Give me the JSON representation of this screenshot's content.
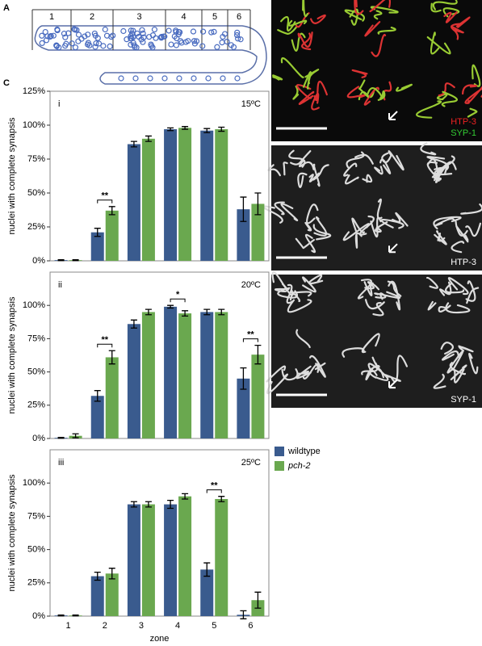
{
  "figure": {
    "panel_labels": [
      "A",
      "B",
      "C"
    ],
    "gonad_zones": [
      "1",
      "2",
      "3",
      "4",
      "5",
      "6"
    ],
    "micrographs": [
      [
        "HTP-3",
        "SYP-1"
      ],
      [
        "HTP-3"
      ],
      [
        "SYP-1"
      ]
    ]
  },
  "chart_data": [
    {
      "type": "bar",
      "panel": "i",
      "temperature": "15ºC",
      "ylabel": "nuclei with complete synapsis",
      "ylim": [
        0,
        125
      ],
      "yticks": [
        {
          "value": 0,
          "label": "0%"
        },
        {
          "value": 25,
          "label": "25%"
        },
        {
          "value": 50,
          "label": "50%"
        },
        {
          "value": 75,
          "label": "75%"
        },
        {
          "value": 100,
          "label": "100%"
        },
        {
          "value": 125,
          "label": "125%"
        }
      ],
      "series": [
        {
          "color": "#3a5b8e",
          "values": [
            0.5,
            21,
            86,
            97,
            96,
            38
          ],
          "errors": [
            0.3,
            3,
            2,
            1,
            1.5,
            9
          ]
        },
        {
          "color": "#6aa84f",
          "values": [
            0.5,
            37,
            90,
            98,
            97,
            42
          ],
          "errors": [
            0.3,
            3,
            2,
            1,
            1.5,
            8
          ]
        }
      ],
      "annotations": [
        {
          "text": "**",
          "category": "2"
        }
      ]
    },
    {
      "type": "bar",
      "panel": "ii",
      "temperature": "20ºC",
      "ylabel": "nuclei with complete synapsis",
      "ylim": [
        0,
        125
      ],
      "yticks": [
        {
          "value": 0,
          "label": "0%"
        },
        {
          "value": 25,
          "label": "25%"
        },
        {
          "value": 50,
          "label": "50%"
        },
        {
          "value": 75,
          "label": "75%"
        },
        {
          "value": 100,
          "label": "100%"
        }
      ],
      "series": [
        {
          "color": "#3a5b8e",
          "values": [
            0.5,
            32,
            86,
            99,
            95,
            45
          ],
          "errors": [
            0.3,
            4,
            3,
            1,
            2,
            8
          ]
        },
        {
          "color": "#6aa84f",
          "values": [
            2,
            61,
            95,
            94,
            95,
            63
          ],
          "errors": [
            1.5,
            5,
            2,
            2,
            2,
            7
          ]
        }
      ],
      "annotations": [
        {
          "text": "**",
          "category": "2"
        },
        {
          "text": "*",
          "category": "4"
        },
        {
          "text": "**",
          "category": "6"
        }
      ]
    },
    {
      "type": "bar",
      "panel": "iii",
      "temperature": "25ºC",
      "ylabel": "nuclei with complete synapsis",
      "xlabel": "zone",
      "ylim": [
        0,
        125
      ],
      "categories": [
        "1",
        "2",
        "3",
        "4",
        "5",
        "6"
      ],
      "yticks": [
        {
          "value": 0,
          "label": "0%"
        },
        {
          "value": 25,
          "label": "25%"
        },
        {
          "value": 50,
          "label": "50%"
        },
        {
          "value": 75,
          "label": "75%"
        },
        {
          "value": 100,
          "label": "100%"
        }
      ],
      "series": [
        {
          "name": "wildtype",
          "color": "#3a5b8e",
          "values": [
            0.5,
            30,
            84,
            84,
            35,
            1
          ],
          "errors": [
            0.3,
            3,
            2,
            3,
            5,
            3
          ]
        },
        {
          "name": "pch-2",
          "color": "#6aa84f",
          "values": [
            0.5,
            32,
            84,
            90,
            88,
            12
          ],
          "errors": [
            0.3,
            4,
            2,
            2,
            2,
            6
          ]
        }
      ],
      "annotations": [
        {
          "text": "**",
          "category": "5"
        }
      ]
    }
  ]
}
